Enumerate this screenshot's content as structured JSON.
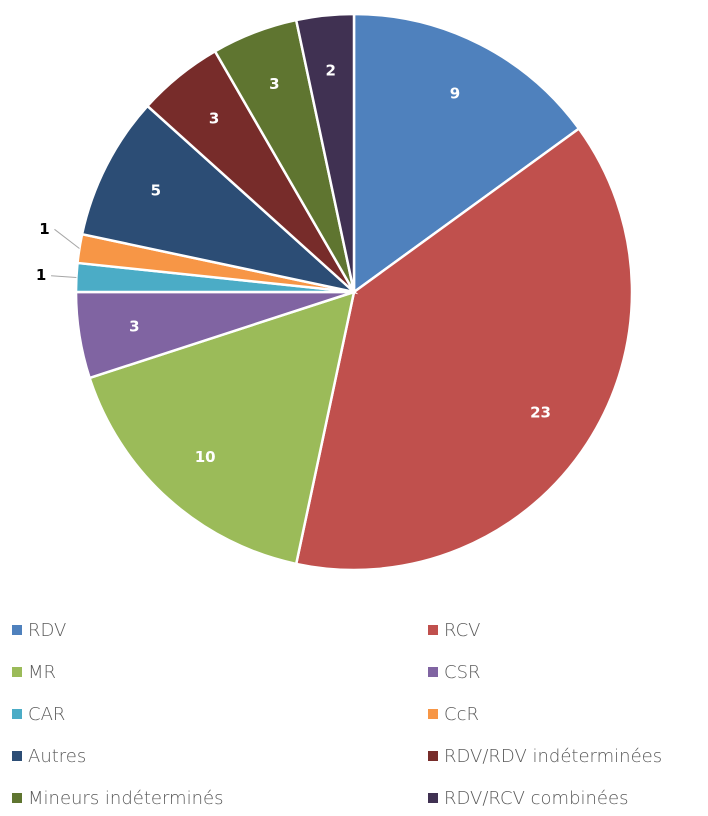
{
  "chart_data": {
    "type": "pie",
    "categories": [
      "RDV",
      "RCV",
      "MR",
      "CSR",
      "CAR",
      "CcR",
      "Autres",
      "RDV/RDV indéterminées",
      "Mineurs indéterminés",
      "RDV/RCV combinées"
    ],
    "values": [
      9,
      23,
      10,
      3,
      1,
      1,
      5,
      3,
      3,
      2
    ],
    "colors": [
      "#4f81bd",
      "#c0504d",
      "#9bbb59",
      "#8064a2",
      "#4bacc6",
      "#f79646",
      "#2c4d75",
      "#772c2a",
      "#5f7530",
      "#403152"
    ],
    "legend": "bottom"
  }
}
